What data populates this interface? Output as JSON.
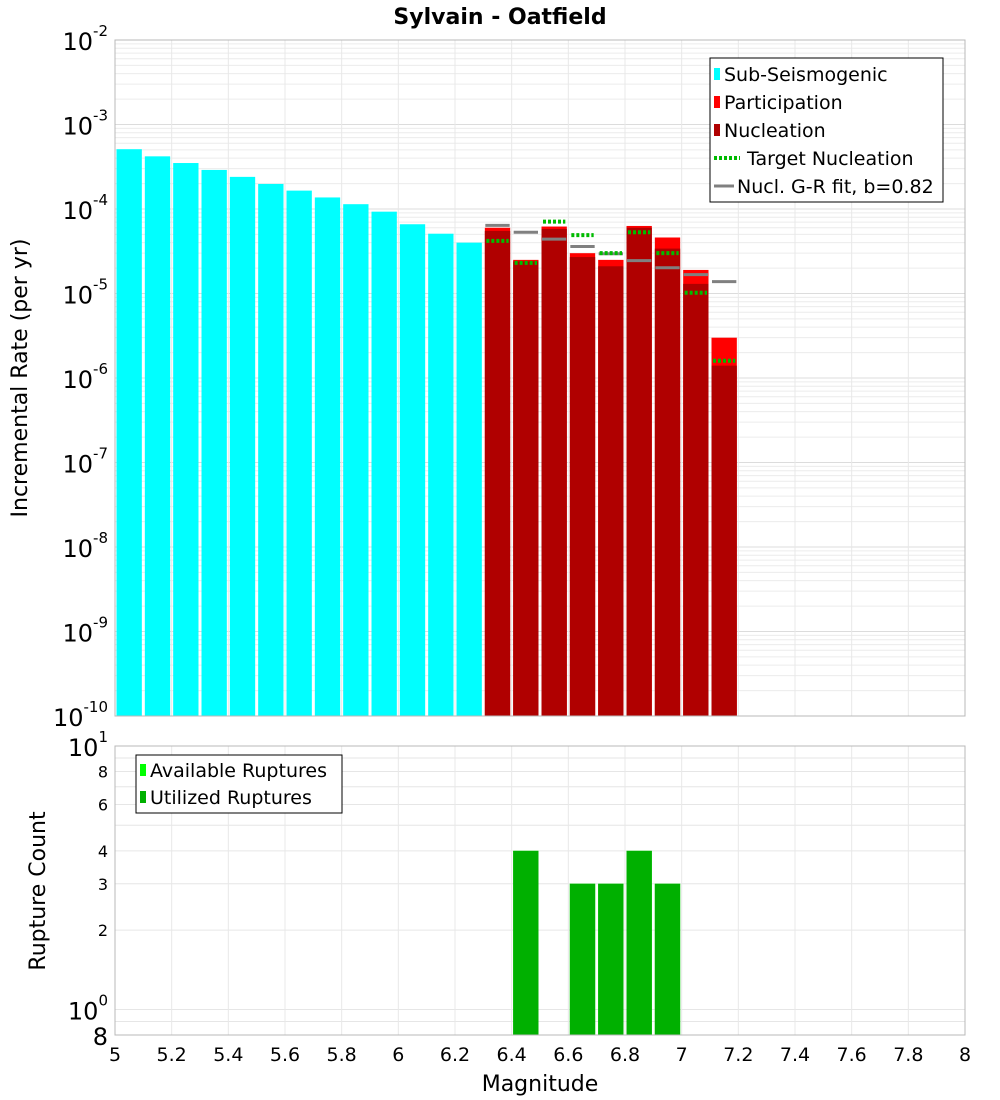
{
  "chart_data": [
    {
      "type": "bar",
      "title": "Sylvain - Oatfield",
      "xlabel": "",
      "ylabel": "Incremental Rate (per yr)",
      "yscale": "log",
      "xlim": [
        5,
        8
      ],
      "ylim": [
        1e-10,
        0.01
      ],
      "grid": true,
      "bin_width": 0.1,
      "ytick_labels": [
        {
          "base": "10",
          "exp": "-2",
          "value": 0.01
        },
        {
          "base": "10",
          "exp": "-3",
          "value": 0.001
        },
        {
          "base": "10",
          "exp": "-4",
          "value": 0.0001
        },
        {
          "base": "10",
          "exp": "-5",
          "value": 1e-05
        },
        {
          "base": "10",
          "exp": "-6",
          "value": 1e-06
        },
        {
          "base": "10",
          "exp": "-7",
          "value": 1e-07
        },
        {
          "base": "10",
          "exp": "-8",
          "value": 1e-08
        },
        {
          "base": "10",
          "exp": "-9",
          "value": 1e-09
        },
        {
          "base": "10",
          "exp": "-10",
          "value": 1e-10
        }
      ],
      "legend_position": "top-right",
      "legend": [
        {
          "label": "Sub-Seismogenic",
          "color": "#00ffff",
          "kind": "box"
        },
        {
          "label": "Participation",
          "color": "#ff0000",
          "kind": "box"
        },
        {
          "label": "Nucleation",
          "color": "#b00000",
          "kind": "box"
        },
        {
          "label": "Target Nucleation",
          "color": "#00bb00",
          "kind": "dotted"
        },
        {
          "label": "Nucl. G-R fit, b=0.82",
          "color": "#808080",
          "kind": "line"
        }
      ],
      "series": [
        {
          "name": "Sub-Seismogenic",
          "color": "#00ffff",
          "x": [
            5.05,
            5.15,
            5.25,
            5.35,
            5.45,
            5.55,
            5.65,
            5.75,
            5.85,
            5.95,
            6.05,
            6.15,
            6.25
          ],
          "values": [
            0.00051,
            0.00042,
            0.00035,
            0.00029,
            0.00024,
            0.000198,
            0.000165,
            0.000137,
            0.000114,
            9.3e-05,
            6.6e-05,
            5.1e-05,
            4e-05
          ]
        },
        {
          "name": "Participation",
          "color": "#ff0000",
          "x": [
            6.35,
            6.45,
            6.55,
            6.65,
            6.75,
            6.85,
            6.95,
            7.05,
            7.15
          ],
          "values": [
            6e-05,
            2.5e-05,
            6.2e-05,
            3e-05,
            2.5e-05,
            6.3e-05,
            4.6e-05,
            1.9e-05,
            3e-06
          ]
        },
        {
          "name": "Nucleation",
          "color": "#b00000",
          "x": [
            6.35,
            6.45,
            6.55,
            6.65,
            6.75,
            6.85,
            6.95,
            7.05,
            7.15
          ],
          "values": [
            5.5e-05,
            2.4e-05,
            5.8e-05,
            2.7e-05,
            2.1e-05,
            6e-05,
            3.4e-05,
            1.3e-05,
            1.4e-06
          ]
        },
        {
          "name": "Target Nucleation",
          "color": "#00bb00",
          "x": [
            6.35,
            6.45,
            6.55,
            6.65,
            6.75,
            6.85,
            6.95,
            7.05,
            7.15
          ],
          "values": [
            4.2e-05,
            2.3e-05,
            7.1e-05,
            4.9e-05,
            3e-05,
            5.3e-05,
            3e-05,
            1.02e-05,
            1.6e-06
          ]
        },
        {
          "name": "Nucl. G-R fit, b=0.82",
          "color": "#808080",
          "x": [
            6.35,
            6.45,
            6.55,
            6.65,
            6.75,
            6.85,
            6.95,
            7.05,
            7.15
          ],
          "values": [
            6.4e-05,
            5.3e-05,
            4.4e-05,
            3.6e-05,
            2.95e-05,
            2.45e-05,
            2.02e-05,
            1.67e-05,
            1.38e-05
          ]
        }
      ]
    },
    {
      "type": "bar",
      "title": "",
      "xlabel": "Magnitude",
      "ylabel": "Rupture Count",
      "yscale": "log",
      "xlim": [
        5,
        8
      ],
      "ylim": [
        0.8,
        10
      ],
      "grid": true,
      "bin_width": 0.1,
      "xtick_labels": [
        "5",
        "5.2",
        "5.4",
        "5.6",
        "5.8",
        "6",
        "6.2",
        "6.4",
        "6.6",
        "6.8",
        "7",
        "7.2",
        "7.4",
        "7.6",
        "7.8",
        "8"
      ],
      "xtick_values": [
        5,
        5.2,
        5.4,
        5.6,
        5.8,
        6,
        6.2,
        6.4,
        6.6,
        6.8,
        7,
        7.2,
        7.4,
        7.6,
        7.8,
        8
      ],
      "ytick_labels": [
        {
          "base": "10",
          "exp": "1",
          "value": 10
        },
        {
          "base": "8",
          "exp": "",
          "value": 8
        },
        {
          "base": "6",
          "exp": "",
          "value": 6
        },
        {
          "base": "4",
          "exp": "",
          "value": 4
        },
        {
          "base": "3",
          "exp": "",
          "value": 3
        },
        {
          "base": "2",
          "exp": "",
          "value": 2
        },
        {
          "base": "10",
          "exp": "0",
          "value": 1
        },
        {
          "base": "8",
          "exp": "",
          "value": 0.8
        }
      ],
      "legend_position": "top-left",
      "legend": [
        {
          "label": "Available Ruptures",
          "color": "#00ff00",
          "kind": "box"
        },
        {
          "label": "Utilized Ruptures",
          "color": "#00b000",
          "kind": "box"
        }
      ],
      "series": [
        {
          "name": "Available Ruptures",
          "color": "#00ff00",
          "x": [
            6.45,
            6.65,
            6.75,
            6.85,
            6.95
          ],
          "values": [
            4,
            3,
            3,
            4,
            3
          ]
        },
        {
          "name": "Utilized Ruptures",
          "color": "#00b000",
          "x": [
            6.45,
            6.65,
            6.75,
            6.85,
            6.95
          ],
          "values": [
            4,
            3,
            3,
            4,
            3
          ]
        }
      ]
    }
  ]
}
